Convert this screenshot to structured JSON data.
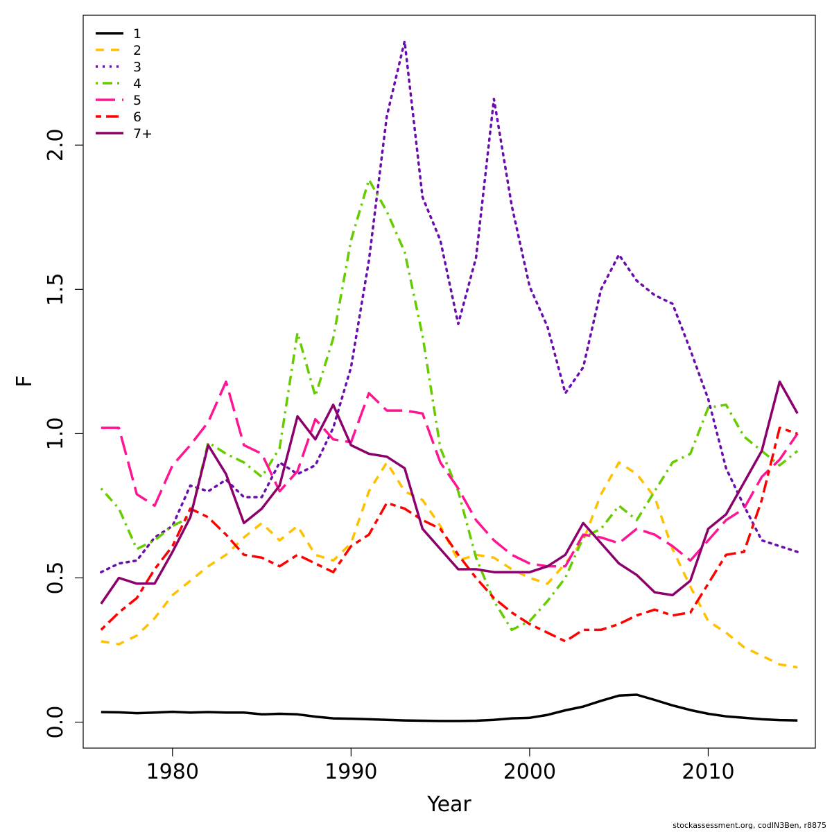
{
  "chart_data": {
    "type": "line",
    "xlabel": "Year",
    "ylabel": "F",
    "xlim": [
      1975,
      2016
    ],
    "ylim": [
      -0.09,
      2.45
    ],
    "xticks": [
      1980,
      1990,
      2000,
      2010
    ],
    "yticks": [
      0.0,
      0.5,
      1.0,
      1.5,
      2.0
    ],
    "ytick_labels": [
      "0.0",
      "0.5",
      "1.0",
      "1.5",
      "2.0"
    ],
    "legend_position": "top-left",
    "x": [
      1976,
      1977,
      1978,
      1979,
      1980,
      1981,
      1982,
      1983,
      1984,
      1985,
      1986,
      1987,
      1988,
      1989,
      1990,
      1991,
      1992,
      1993,
      1994,
      1995,
      1996,
      1997,
      1998,
      1999,
      2000,
      2001,
      2002,
      2003,
      2004,
      2005,
      2006,
      2007,
      2008,
      2009,
      2010,
      2011,
      2012,
      2013,
      2014,
      2015
    ],
    "series": [
      {
        "name": "1",
        "color": "#000000",
        "dash": "solid",
        "values": [
          0.035,
          0.034,
          0.031,
          0.033,
          0.036,
          0.033,
          0.035,
          0.033,
          0.033,
          0.027,
          0.029,
          0.027,
          0.019,
          0.013,
          0.012,
          0.01,
          0.008,
          0.006,
          0.005,
          0.004,
          0.004,
          0.005,
          0.008,
          0.013,
          0.015,
          0.025,
          0.041,
          0.054,
          0.074,
          0.092,
          0.095,
          0.077,
          0.058,
          0.042,
          0.029,
          0.02,
          0.015,
          0.01,
          0.007,
          0.006
        ]
      },
      {
        "name": "2",
        "color": "#ffc000",
        "dash": "dashed",
        "values": [
          0.28,
          0.27,
          0.3,
          0.36,
          0.44,
          0.49,
          0.54,
          0.58,
          0.64,
          0.69,
          0.63,
          0.68,
          0.58,
          0.56,
          0.62,
          0.8,
          0.9,
          0.8,
          0.77,
          0.68,
          0.56,
          0.58,
          0.57,
          0.53,
          0.5,
          0.48,
          0.55,
          0.63,
          0.79,
          0.9,
          0.86,
          0.78,
          0.6,
          0.47,
          0.35,
          0.31,
          0.26,
          0.23,
          0.2,
          0.19
        ]
      },
      {
        "name": "3",
        "color": "#6a0dad",
        "dash": "dotted",
        "values": [
          0.52,
          0.55,
          0.56,
          0.64,
          0.68,
          0.82,
          0.8,
          0.84,
          0.78,
          0.78,
          0.9,
          0.86,
          0.89,
          1.02,
          1.23,
          1.6,
          2.1,
          2.36,
          1.82,
          1.67,
          1.38,
          1.61,
          2.16,
          1.79,
          1.51,
          1.37,
          1.14,
          1.23,
          1.5,
          1.62,
          1.53,
          1.48,
          1.45,
          1.29,
          1.12,
          0.88,
          0.75,
          0.63,
          0.61,
          0.59
        ]
      },
      {
        "name": "4",
        "color": "#66cc00",
        "dash": "dashdot",
        "values": [
          0.81,
          0.74,
          0.6,
          0.63,
          0.68,
          0.71,
          0.97,
          0.93,
          0.9,
          0.85,
          0.95,
          1.35,
          1.13,
          1.33,
          1.67,
          1.88,
          1.77,
          1.63,
          1.34,
          0.95,
          0.8,
          0.57,
          0.42,
          0.32,
          0.35,
          0.42,
          0.5,
          0.64,
          0.67,
          0.75,
          0.7,
          0.8,
          0.9,
          0.93,
          1.09,
          1.1,
          0.99,
          0.94,
          0.89,
          0.94
        ]
      },
      {
        "name": "5",
        "color": "#ff1493",
        "dash": "longdash",
        "values": [
          1.02,
          1.02,
          0.79,
          0.75,
          0.89,
          0.96,
          1.04,
          1.18,
          0.96,
          0.93,
          0.8,
          0.87,
          1.05,
          0.98,
          0.97,
          1.14,
          1.08,
          1.08,
          1.07,
          0.9,
          0.81,
          0.7,
          0.63,
          0.58,
          0.55,
          0.54,
          0.54,
          0.65,
          0.64,
          0.62,
          0.67,
          0.65,
          0.61,
          0.56,
          0.63,
          0.7,
          0.74,
          0.85,
          0.91,
          1.0
        ]
      },
      {
        "name": "6",
        "color": "#ff0000",
        "dash": "twodash",
        "values": [
          0.32,
          0.38,
          0.43,
          0.53,
          0.61,
          0.74,
          0.71,
          0.65,
          0.58,
          0.57,
          0.54,
          0.58,
          0.55,
          0.52,
          0.61,
          0.65,
          0.76,
          0.74,
          0.7,
          0.67,
          0.58,
          0.5,
          0.43,
          0.38,
          0.34,
          0.31,
          0.28,
          0.32,
          0.32,
          0.34,
          0.37,
          0.39,
          0.37,
          0.38,
          0.48,
          0.58,
          0.59,
          0.77,
          1.02,
          1.0
        ]
      },
      {
        "name": "7+",
        "color": "#8b006b",
        "dash": "solid",
        "values": [
          0.41,
          0.5,
          0.48,
          0.48,
          0.59,
          0.71,
          0.96,
          0.86,
          0.69,
          0.74,
          0.82,
          1.06,
          0.98,
          1.1,
          0.96,
          0.93,
          0.92,
          0.88,
          0.67,
          0.6,
          0.53,
          0.53,
          0.52,
          0.52,
          0.52,
          0.54,
          0.58,
          0.69,
          0.62,
          0.55,
          0.51,
          0.45,
          0.44,
          0.49,
          0.67,
          0.72,
          0.83,
          0.94,
          1.18,
          1.07
        ]
      }
    ]
  },
  "credit": "stockassessment.org, codIN3Ben, r8875"
}
